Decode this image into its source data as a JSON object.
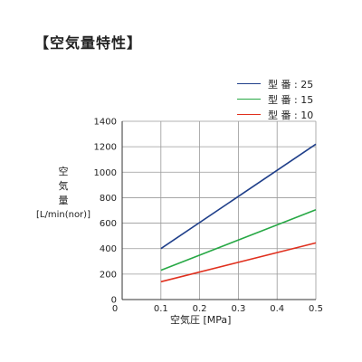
{
  "title": "【空気量特性】",
  "chart_data": {
    "type": "line",
    "xlabel": "空気圧 [MPa]",
    "ylabel_chars": [
      "空",
      "気",
      "量"
    ],
    "ylabel_unit": "[L/min(nor)]",
    "xlim": [
      0,
      0.5
    ],
    "ylim": [
      0,
      1400
    ],
    "x_ticks": [
      "0",
      "0.1",
      "0.2",
      "0.3",
      "0.4",
      "0.5"
    ],
    "y_ticks": [
      "0",
      "200",
      "400",
      "600",
      "800",
      "1000",
      "1200",
      "1400"
    ],
    "grid": true,
    "legend_position": "top-right",
    "series": [
      {
        "name": "型 番 : 25",
        "color": "#1f3f8a",
        "x": [
          0.1,
          0.5
        ],
        "y": [
          400,
          1220
        ]
      },
      {
        "name": "型 番 : 15",
        "color": "#27a845",
        "x": [
          0.1,
          0.5
        ],
        "y": [
          230,
          705
        ]
      },
      {
        "name": "型 番 : 10",
        "color": "#e0301e",
        "x": [
          0.1,
          0.5
        ],
        "y": [
          140,
          445
        ]
      }
    ]
  }
}
